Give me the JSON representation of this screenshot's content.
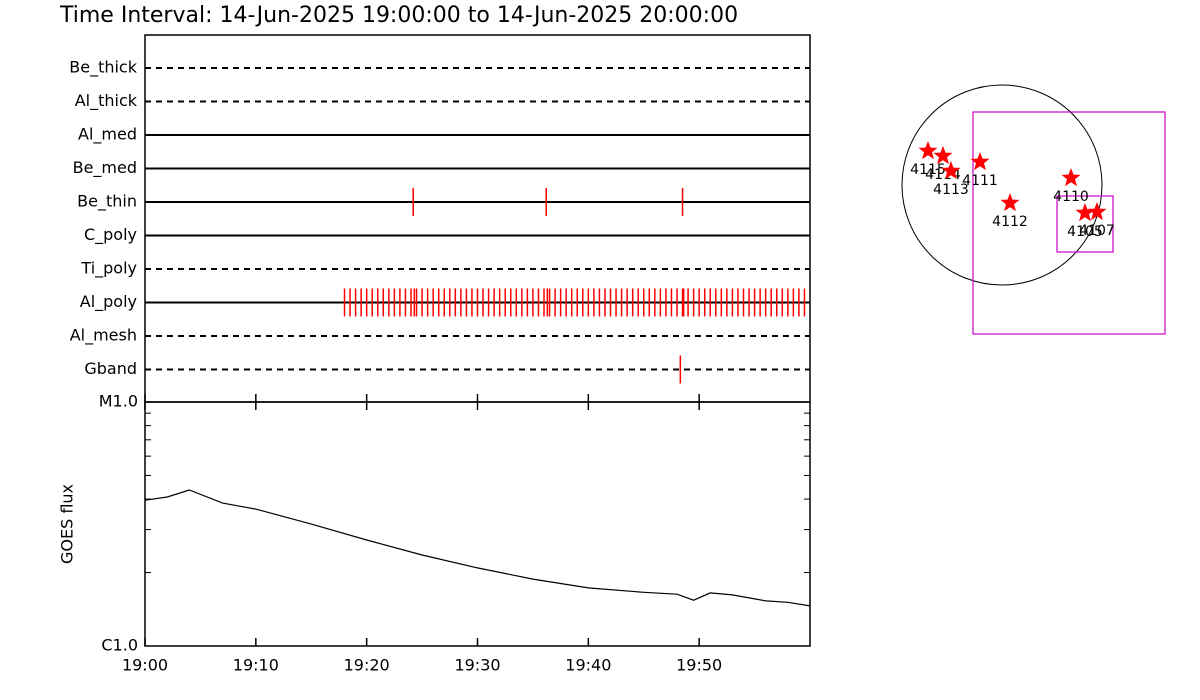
{
  "chart_data": [
    {
      "type": "timeline",
      "title": "Time Interval: 14-Jun-2025 19:00:00 to 14-Jun-2025 20:00:00",
      "color": "#ff0000",
      "xlim": [
        0,
        60
      ],
      "xticks": [
        {
          "value": 0,
          "label": "19:00"
        },
        {
          "value": 10,
          "label": "19:10"
        },
        {
          "value": 20,
          "label": "19:20"
        },
        {
          "value": 30,
          "label": "19:30"
        },
        {
          "value": 40,
          "label": "19:40"
        },
        {
          "value": 50,
          "label": "19:50"
        }
      ],
      "rows": [
        {
          "name": "Be_thick",
          "style": "dashed",
          "times": []
        },
        {
          "name": "Al_thick",
          "style": "dashed",
          "times": []
        },
        {
          "name": "Al_med",
          "style": "solid",
          "times": []
        },
        {
          "name": "Be_med",
          "style": "solid",
          "times": []
        },
        {
          "name": "Be_thin",
          "style": "solid",
          "times": [
            24.2,
            36.2,
            48.5
          ]
        },
        {
          "name": "C_poly",
          "style": "solid",
          "times": []
        },
        {
          "name": "Ti_poly",
          "style": "dashed",
          "times": []
        },
        {
          "name": "Al_poly",
          "style": "solid",
          "times": [
            18,
            18.5,
            19,
            19.5,
            20,
            20.5,
            21,
            21.5,
            22,
            22.5,
            23,
            23.5,
            24,
            24.3,
            24.5,
            25,
            25.5,
            26,
            26.5,
            27,
            27.5,
            28,
            28.5,
            29,
            29.5,
            30,
            30.5,
            31,
            31.5,
            32,
            32.5,
            33,
            33.5,
            34,
            34.5,
            35,
            35.5,
            36,
            36.3,
            36.5,
            37,
            37.5,
            38,
            38.5,
            39,
            39.5,
            40,
            40.5,
            41,
            41.5,
            42,
            42.5,
            43,
            43.5,
            44,
            44.5,
            45,
            45.5,
            46,
            46.5,
            47,
            47.5,
            48,
            48.5,
            48.6,
            49,
            49.5,
            50,
            50.5,
            51,
            51.5,
            52,
            52.5,
            53,
            53.5,
            54,
            54.5,
            55,
            55.5,
            56,
            56.5,
            57,
            57.5,
            58,
            58.5,
            59,
            59.5
          ]
        },
        {
          "name": "Al_mesh",
          "style": "dashed",
          "times": []
        },
        {
          "name": "Gband",
          "style": "dashed",
          "times": [
            48.3
          ]
        }
      ]
    },
    {
      "type": "line",
      "ylabel": "GOES flux",
      "log": true,
      "color": "#000000",
      "xlim": [
        0,
        60
      ],
      "ylim": [
        1e-06,
        1e-05
      ],
      "yticks": [
        {
          "value": 1e-06,
          "label": "C1.0"
        },
        {
          "value": 1e-05,
          "label": "M1.0"
        }
      ],
      "yminor": [
        2e-06,
        3e-06,
        4e-06,
        5e-06,
        6e-06,
        7e-06,
        8e-06,
        9e-06
      ],
      "x": [
        0,
        2,
        4,
        7,
        10,
        15,
        20,
        25,
        30,
        35,
        40,
        45,
        48,
        49.5,
        51,
        53,
        56,
        58,
        60
      ],
      "values": [
        3.96e-06,
        4.08e-06,
        4.36e-06,
        3.85e-06,
        3.64e-06,
        3.16e-06,
        2.72e-06,
        2.36e-06,
        2.09e-06,
        1.88e-06,
        1.73e-06,
        1.66e-06,
        1.63e-06,
        1.54e-06,
        1.65e-06,
        1.62e-06,
        1.53e-06,
        1.51e-06,
        1.46e-06
      ]
    },
    {
      "type": "map",
      "color": "#ff0000",
      "box_color": "#cc00cc",
      "points": [
        {
          "label": "4115",
          "x": -0.74,
          "y": 0.34
        },
        {
          "label": "4114",
          "x": -0.59,
          "y": 0.29
        },
        {
          "label": "4113",
          "x": -0.51,
          "y": 0.14
        },
        {
          "label": "4111",
          "x": -0.22,
          "y": 0.23
        },
        {
          "label": "4112",
          "x": 0.08,
          "y": -0.18
        },
        {
          "label": "4110",
          "x": 0.69,
          "y": 0.07
        },
        {
          "label": "4105",
          "x": 0.83,
          "y": -0.28
        },
        {
          "label": "4107",
          "x": 0.95,
          "y": -0.27
        }
      ],
      "boxes": [
        {
          "x": [
            -0.29,
            1.63
          ],
          "y": [
            -1.49,
            0.73
          ]
        },
        {
          "x": [
            0.55,
            1.11
          ],
          "y": [
            -0.67,
            -0.11
          ]
        }
      ]
    }
  ]
}
